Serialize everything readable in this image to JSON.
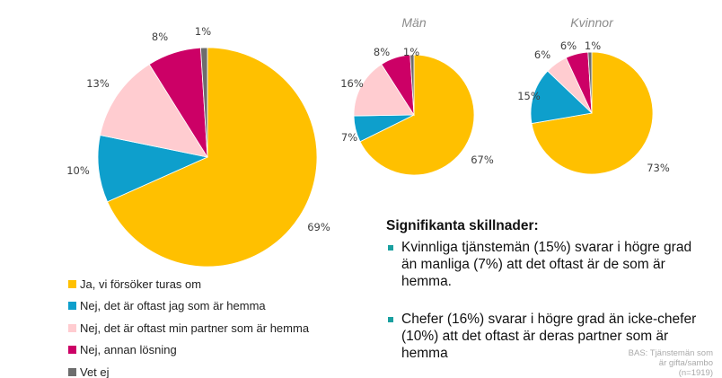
{
  "chart_data": [
    {
      "type": "pie",
      "title": "",
      "categories": [
        "Ja, vi försöker turas om",
        "Nej, det är oftast jag som är hemma",
        "Nej, det är oftast min partner som är hemma",
        "Nej, annan lösning",
        "Vet ej"
      ],
      "values": [
        69,
        10,
        13,
        8,
        1
      ],
      "labels": [
        "69%",
        "10%",
        "13%",
        "8%",
        "1%"
      ]
    },
    {
      "type": "pie",
      "title": "Män",
      "categories": [
        "Ja, vi försöker turas om",
        "Nej, det är oftast jag som är hemma",
        "Nej, det är oftast min partner som är hemma",
        "Nej, annan lösning",
        "Vet ej"
      ],
      "values": [
        67,
        7,
        16,
        8,
        1
      ],
      "labels": [
        "67%",
        "7%",
        "16%",
        "8%",
        "1%"
      ]
    },
    {
      "type": "pie",
      "title": "Kvinnor",
      "categories": [
        "Ja, vi försöker turas om",
        "Nej, det är oftast jag som är hemma",
        "Nej, det är oftast min partner som är hemma",
        "Nej, annan lösning",
        "Vet ej"
      ],
      "values": [
        73,
        15,
        6,
        6,
        1
      ],
      "labels": [
        "73%",
        "15%",
        "6%",
        "6%",
        "1%"
      ]
    }
  ],
  "colors": [
    "#ffc000",
    "#0e9fcc",
    "#ffccd0",
    "#cc0066",
    "#6d6d6d"
  ],
  "legend": {
    "placement": "bottom-left",
    "items": [
      "Ja, vi försöker turas om",
      "Nej, det är oftast jag som är hemma",
      "Nej, det är oftast min partner som är hemma",
      "Nej, annan lösning",
      "Vet ej"
    ]
  },
  "notes": {
    "heading": "Signifikanta skillnader:",
    "bullets": [
      "Kvinnliga tjänstemän (15%) svarar  i högre grad än manliga (7%) att det oftast är de som är hemma.",
      "Chefer (16%) svarar i högre grad än icke-chefer (10%) att det oftast är deras partner som är hemma"
    ]
  },
  "base": [
    "BAS: Tjänstemän som",
    "är gifta/sambo",
    "(n=1919)"
  ]
}
